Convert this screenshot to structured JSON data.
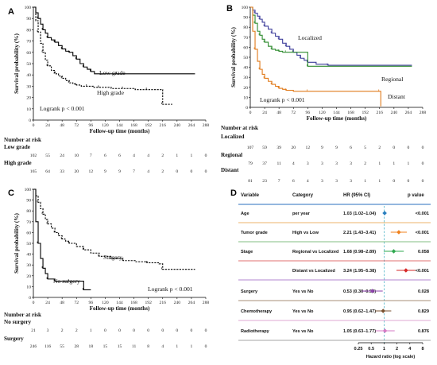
{
  "chart_data": [
    {
      "type": "line",
      "panel": "A",
      "ylabel": "Survival probability (%)",
      "xlabel": "Follow-up time (months)",
      "xlim": [
        0,
        288
      ],
      "ylim": [
        0,
        100
      ],
      "xticks": [
        0,
        24,
        48,
        72,
        96,
        120,
        144,
        168,
        192,
        216,
        240,
        264,
        288
      ],
      "yticks": [
        0,
        10,
        20,
        30,
        40,
        50,
        60,
        70,
        80,
        90,
        100
      ],
      "annotation": "Logrank p < 0.001",
      "series": [
        {
          "name": "Low grade",
          "style": "solid",
          "x": [
            0,
            4,
            8,
            12,
            16,
            20,
            24,
            30,
            36,
            42,
            48,
            54,
            60,
            66,
            72,
            78,
            84,
            90,
            96,
            102,
            140,
            270
          ],
          "y": [
            100,
            95,
            90,
            85,
            80,
            77,
            73,
            71,
            69,
            66,
            63,
            61,
            60,
            57,
            54,
            50,
            47,
            45,
            43,
            41,
            41,
            41
          ]
        },
        {
          "name": "High grade",
          "style": "dashed",
          "x": [
            0,
            4,
            8,
            12,
            16,
            20,
            24,
            30,
            36,
            42,
            48,
            54,
            60,
            66,
            72,
            80,
            90,
            100,
            110,
            130,
            150,
            170,
            190,
            210,
            216,
            232
          ],
          "y": [
            100,
            88,
            78,
            68,
            60,
            53,
            48,
            44,
            41,
            39,
            37,
            35,
            33,
            32,
            31,
            30,
            30,
            29,
            29,
            28,
            28,
            27,
            27,
            27,
            14,
            14
          ]
        }
      ],
      "risk_table": {
        "title": "Number at risk",
        "rows": [
          {
            "label": "Low grade",
            "values": [
              "102",
              "55",
              "24",
              "10",
              "7",
              "6",
              "6",
              "4",
              "4",
              "2",
              "1",
              "1",
              "0"
            ]
          },
          {
            "label": "High grade",
            "values": [
              "165",
              "64",
              "33",
              "20",
              "12",
              "9",
              "9",
              "7",
              "4",
              "2",
              "0",
              "0",
              "0"
            ]
          }
        ]
      }
    },
    {
      "type": "line",
      "panel": "B",
      "ylabel": "Survival probability (%)",
      "xlabel": "Follow-up time (months)",
      "xlim": [
        0,
        288
      ],
      "ylim": [
        0,
        100
      ],
      "xticks": [
        0,
        24,
        48,
        72,
        96,
        120,
        144,
        168,
        192,
        216,
        240,
        264,
        288
      ],
      "yticks": [
        0,
        10,
        20,
        30,
        40,
        50,
        60,
        70,
        80,
        90,
        100
      ],
      "annotation": "Logrank p < 0.001",
      "series": [
        {
          "name": "Localized",
          "color": "#3c3c9a",
          "x": [
            0,
            4,
            8,
            12,
            16,
            20,
            24,
            30,
            36,
            42,
            48,
            54,
            60,
            66,
            72,
            78,
            84,
            90,
            96,
            110,
            130,
            270
          ],
          "y": [
            100,
            97,
            94,
            91,
            88,
            85,
            81,
            78,
            74,
            71,
            68,
            64,
            61,
            58,
            55,
            52,
            49,
            47,
            45,
            43,
            42,
            42
          ]
        },
        {
          "name": "Regional",
          "color": "#2e8b2e",
          "x": [
            0,
            4,
            8,
            12,
            16,
            20,
            24,
            30,
            36,
            42,
            48,
            54,
            60,
            66,
            72,
            90,
            96,
            130,
            270
          ],
          "y": [
            100,
            92,
            84,
            76,
            72,
            68,
            65,
            61,
            58,
            57,
            56,
            55,
            55,
            55,
            55,
            55,
            41,
            41,
            41
          ]
        },
        {
          "name": "Distant",
          "color": "#e07a1a",
          "x": [
            0,
            4,
            8,
            12,
            16,
            20,
            24,
            30,
            36,
            42,
            48,
            54,
            60,
            72,
            96,
            150,
            216,
            218
          ],
          "y": [
            100,
            76,
            58,
            46,
            38,
            33,
            29,
            26,
            23,
            21,
            19,
            18,
            17,
            16,
            16,
            16,
            16,
            1
          ]
        }
      ],
      "risk_table": {
        "title": "Number at risk",
        "rows": [
          {
            "label": "Localized",
            "values": [
              "107",
              "59",
              "39",
              "20",
              "12",
              "9",
              "9",
              "6",
              "5",
              "2",
              "0",
              "0",
              "0"
            ]
          },
          {
            "label": "Regional",
            "values": [
              "79",
              "37",
              "11",
              "4",
              "3",
              "3",
              "3",
              "3",
              "2",
              "1",
              "1",
              "1",
              "0"
            ]
          },
          {
            "label": "Distant",
            "values": [
              "81",
              "23",
              "7",
              "6",
              "4",
              "3",
              "3",
              "3",
              "1",
              "1",
              "0",
              "0",
              "0"
            ]
          }
        ]
      }
    },
    {
      "type": "line",
      "panel": "C",
      "ylabel": "Survival probability (%)",
      "xlabel": "Follow-up time (months)",
      "xlim": [
        0,
        288
      ],
      "ylim": [
        0,
        100
      ],
      "xticks": [
        0,
        24,
        48,
        72,
        96,
        120,
        144,
        168,
        192,
        216,
        240,
        264,
        288
      ],
      "yticks": [
        0,
        10,
        20,
        30,
        40,
        50,
        60,
        70,
        80,
        90,
        100
      ],
      "annotation": "Logrank p < 0.001",
      "series": [
        {
          "name": "Surgery",
          "style": "dashed",
          "x": [
            0,
            4,
            8,
            12,
            16,
            20,
            24,
            30,
            36,
            42,
            48,
            54,
            60,
            72,
            84,
            96,
            110,
            130,
            150,
            170,
            190,
            210,
            216,
            270
          ],
          "y": [
            100,
            94,
            88,
            82,
            77,
            72,
            68,
            64,
            60,
            57,
            54,
            52,
            50,
            47,
            44,
            41,
            38,
            36,
            34,
            33,
            32,
            31,
            26,
            26
          ]
        },
        {
          "name": "No surgery",
          "style": "solid",
          "x": [
            0,
            4,
            8,
            12,
            16,
            20,
            24,
            30,
            36,
            48,
            60,
            72,
            84,
            96
          ],
          "y": [
            100,
            70,
            50,
            36,
            27,
            22,
            17,
            17,
            15,
            15,
            15,
            15,
            7,
            7
          ]
        }
      ],
      "risk_table": {
        "title": "Number at risk",
        "rows": [
          {
            "label": "No surgery",
            "values": [
              "21",
              "3",
              "2",
              "2",
              "1",
              "0",
              "0",
              "0",
              "0",
              "0",
              "0",
              "0",
              "0"
            ]
          },
          {
            "label": "Surgery",
            "values": [
              "246",
              "116",
              "55",
              "28",
              "18",
              "15",
              "15",
              "11",
              "8",
              "4",
              "1",
              "1",
              "0"
            ]
          }
        ]
      }
    },
    {
      "type": "table",
      "panel": "D",
      "headers": {
        "variable": "Variable",
        "category": "Category",
        "hr": "HR (95% CI)",
        "p": "p value"
      },
      "xlabel": "Hazard ratio (log scale)",
      "xticks": [
        0.25,
        0.5,
        1,
        2,
        4,
        8
      ],
      "xtick_labels": [
        "0.25",
        "0.5",
        "1",
        "2",
        "4",
        "8"
      ],
      "rows": [
        {
          "variable": "Age",
          "category": "per year",
          "hr_text": "1.03 (1.02–1.04)",
          "p": "<0.001",
          "hr": 1.03,
          "lo": 1.02,
          "hi": 1.04,
          "color": "#2a7fbf",
          "divider": "#e69a3a"
        },
        {
          "variable": "Tumor grade",
          "category": "High vs Low",
          "hr_text": "2.21 (1.43–3.41)",
          "p": "<0.001",
          "hr": 2.21,
          "lo": 1.43,
          "hi": 3.41,
          "color": "#f0821e",
          "divider": "#5aaa5a"
        },
        {
          "variable": "Stage",
          "category": "Regional vs Localized",
          "hr_text": "1.68 (0.98–2.89)",
          "p": "0.058",
          "hr": 1.68,
          "lo": 0.98,
          "hi": 2.89,
          "color": "#2fa84f",
          "divider": "#d64040"
        },
        {
          "variable": "",
          "category": "Distant vs Localized",
          "hr_text": "3.24 (1.95–5.38)",
          "p": "<0.001",
          "hr": 3.24,
          "lo": 1.95,
          "hi": 5.38,
          "color": "#d62828",
          "divider": "#9a5cc0"
        },
        {
          "variable": "Surgery",
          "category": "Yes vs No",
          "hr_text": "0.53 (0.30–0.93)",
          "p": "0.028",
          "hr": 0.53,
          "lo": 0.3,
          "hi": 0.93,
          "color": "#8e44ad",
          "divider": "#8a6a4a"
        },
        {
          "variable": "Chemotherapy",
          "category": "Yes vs No",
          "hr_text": "0.95 (0.62–1.47)",
          "p": "0.829",
          "hr": 0.95,
          "lo": 0.62,
          "hi": 1.47,
          "color": "#7a5230",
          "divider": "#d48ac4"
        },
        {
          "variable": "Radiotherapy",
          "category": "Yes vs No",
          "hr_text": "1.05 (0.63–1.77)",
          "p": "0.876",
          "hr": 1.05,
          "lo": 0.63,
          "hi": 1.77,
          "color": "#d67ac4",
          "divider": "#888888"
        }
      ]
    }
  ]
}
